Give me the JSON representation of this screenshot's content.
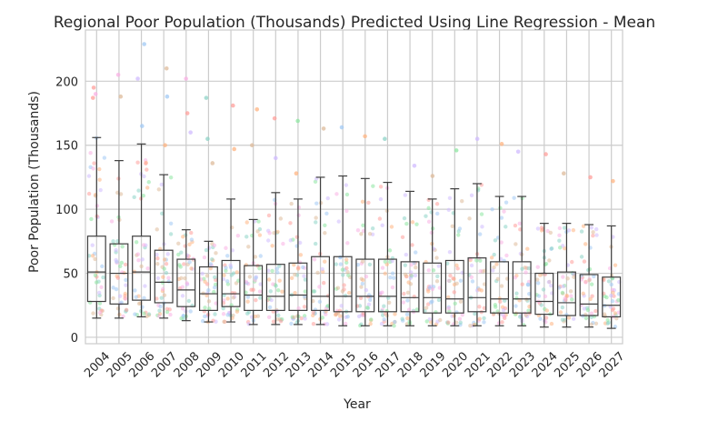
{
  "chart_data": {
    "type": "box",
    "title": "Regional Poor Population (Thousands) Predicted Using Line Regression - Mean",
    "xlabel": "Year",
    "ylabel": "Poor Population (Thousands)",
    "ylim": [
      -5,
      240
    ],
    "yticks": [
      0,
      50,
      100,
      150,
      200
    ],
    "grid": true,
    "categories": [
      "2004",
      "2005",
      "2006",
      "2007",
      "2008",
      "2009",
      "2010",
      "2011",
      "2012",
      "2013",
      "2014",
      "2015",
      "2016",
      "2017",
      "2018",
      "2019",
      "2020",
      "2021",
      "2022",
      "2023",
      "2024",
      "2025",
      "2026",
      "2027"
    ],
    "boxes": [
      {
        "whisker_low": 15,
        "q1": 28,
        "median": 51,
        "q3": 79,
        "whisker_high": 156
      },
      {
        "whisker_low": 15,
        "q1": 26,
        "median": 50,
        "q3": 73,
        "whisker_high": 138
      },
      {
        "whisker_low": 16,
        "q1": 29,
        "median": 51,
        "q3": 79,
        "whisker_high": 151
      },
      {
        "whisker_low": 15,
        "q1": 27,
        "median": 43,
        "q3": 68,
        "whisker_high": 127
      },
      {
        "whisker_low": 13,
        "q1": 24,
        "median": 37,
        "q3": 61,
        "whisker_high": 84
      },
      {
        "whisker_low": 12,
        "q1": 21,
        "median": 34,
        "q3": 55,
        "whisker_high": 75
      },
      {
        "whisker_low": 12,
        "q1": 24,
        "median": 34,
        "q3": 60,
        "whisker_high": 108
      },
      {
        "whisker_low": 10,
        "q1": 21,
        "median": 33,
        "q3": 56,
        "whisker_high": 92
      },
      {
        "whisker_low": 10,
        "q1": 21,
        "median": 32,
        "q3": 57,
        "whisker_high": 113
      },
      {
        "whisker_low": 10,
        "q1": 21,
        "median": 33,
        "q3": 58,
        "whisker_high": 108
      },
      {
        "whisker_low": 10,
        "q1": 21,
        "median": 32,
        "q3": 63,
        "whisker_high": 125
      },
      {
        "whisker_low": 9,
        "q1": 20,
        "median": 32,
        "q3": 63,
        "whisker_high": 126
      },
      {
        "whisker_low": 9,
        "q1": 20,
        "median": 32,
        "q3": 61,
        "whisker_high": 124
      },
      {
        "whisker_low": 9,
        "q1": 20,
        "median": 32,
        "q3": 61,
        "whisker_high": 121
      },
      {
        "whisker_low": 9,
        "q1": 20,
        "median": 31,
        "q3": 59,
        "whisker_high": 114
      },
      {
        "whisker_low": 9,
        "q1": 19,
        "median": 31,
        "q3": 58,
        "whisker_high": 108
      },
      {
        "whisker_low": 9,
        "q1": 19,
        "median": 30,
        "q3": 60,
        "whisker_high": 116
      },
      {
        "whisker_low": 9,
        "q1": 20,
        "median": 31,
        "q3": 62,
        "whisker_high": 120
      },
      {
        "whisker_low": 9,
        "q1": 19,
        "median": 30,
        "q3": 59,
        "whisker_high": 110
      },
      {
        "whisker_low": 9,
        "q1": 19,
        "median": 30,
        "q3": 59,
        "whisker_high": 110
      },
      {
        "whisker_low": 8,
        "q1": 18,
        "median": 28,
        "q3": 50,
        "whisker_high": 89
      },
      {
        "whisker_low": 8,
        "q1": 17,
        "median": 27,
        "q3": 51,
        "whisker_high": 89
      },
      {
        "whisker_low": 8,
        "q1": 17,
        "median": 26,
        "q3": 49,
        "whisker_high": 88
      },
      {
        "whisker_low": 7,
        "q1": 16,
        "median": 25,
        "q3": 47,
        "whisker_high": 87
      }
    ],
    "outliers": [
      [
        195,
        190,
        187
      ],
      [
        205,
        188
      ],
      [
        229,
        202,
        165
      ],
      [
        210,
        188,
        150
      ],
      [
        202,
        175,
        160
      ],
      [
        187,
        155,
        136
      ],
      [
        181,
        147
      ],
      [
        178,
        150
      ],
      [
        171,
        140
      ],
      [
        169,
        128
      ],
      [
        163
      ],
      [
        164
      ],
      [
        157
      ],
      [
        155
      ],
      [
        134
      ],
      [
        126
      ],
      [
        146
      ],
      [
        155
      ],
      [
        151
      ],
      [
        145
      ],
      [
        143
      ],
      [
        128
      ],
      [
        125
      ],
      [
        122
      ]
    ],
    "jitter_colors": [
      "#8dd3c7",
      "#ffb482",
      "#8de5a1",
      "#ff9f9b",
      "#d0bbff",
      "#debb9b",
      "#fab0e4",
      "#a1c9f4"
    ]
  }
}
